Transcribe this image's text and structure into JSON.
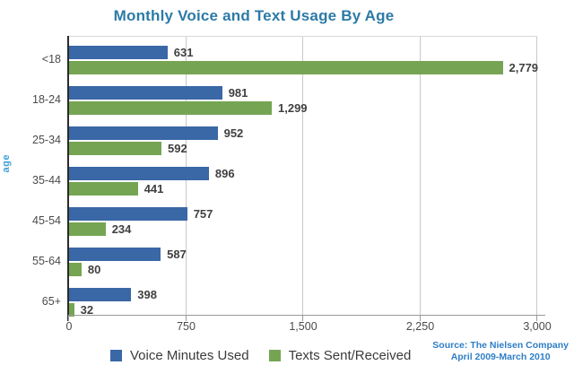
{
  "title": "Monthly Voice and Text Usage By Age",
  "y_axis_label": "age",
  "legend": {
    "voice_label": "Voice Minutes Used",
    "texts_label": "Texts Sent/Received"
  },
  "source": {
    "line1": "Source: The Nielsen Company",
    "line2": "April 2009-March 2010"
  },
  "colors": {
    "voice_bar": "#3a67a6",
    "texts_bar": "#75a553",
    "title": "#2d7aa6",
    "y_axis_title": "#3f9fd6",
    "source_text": "#2e7ec5",
    "gridline": "#c9c9c9",
    "axis": "#2b2b2b"
  },
  "chart_data": {
    "type": "bar",
    "orientation": "horizontal",
    "title": "Monthly Voice and Text Usage By Age",
    "ylabel": "age",
    "xlabel": "",
    "xlim": [
      0,
      3000
    ],
    "x_ticks": [
      0,
      750,
      1500,
      2250,
      3000
    ],
    "x_tick_labels": [
      "0",
      "750",
      "1,500",
      "2,250",
      "3,000"
    ],
    "grid": "vertical",
    "legend_position": "bottom",
    "categories": [
      "<18",
      "18-24",
      "25-34",
      "35-44",
      "45-54",
      "55-64",
      "65+"
    ],
    "series": [
      {
        "name": "Voice Minutes Used",
        "color": "#3a67a6",
        "values": [
          631,
          981,
          952,
          896,
          757,
          587,
          398
        ],
        "labels": [
          "631",
          "981",
          "952",
          "896",
          "757",
          "587",
          "398"
        ]
      },
      {
        "name": "Texts Sent/Received",
        "color": "#75a553",
        "values": [
          2779,
          1299,
          592,
          441,
          234,
          80,
          32
        ],
        "labels": [
          "2,779",
          "1,299",
          "592",
          "441",
          "234",
          "80",
          "32"
        ]
      }
    ],
    "annotations": [
      "Source: The Nielsen Company",
      "April 2009-March 2010"
    ]
  }
}
